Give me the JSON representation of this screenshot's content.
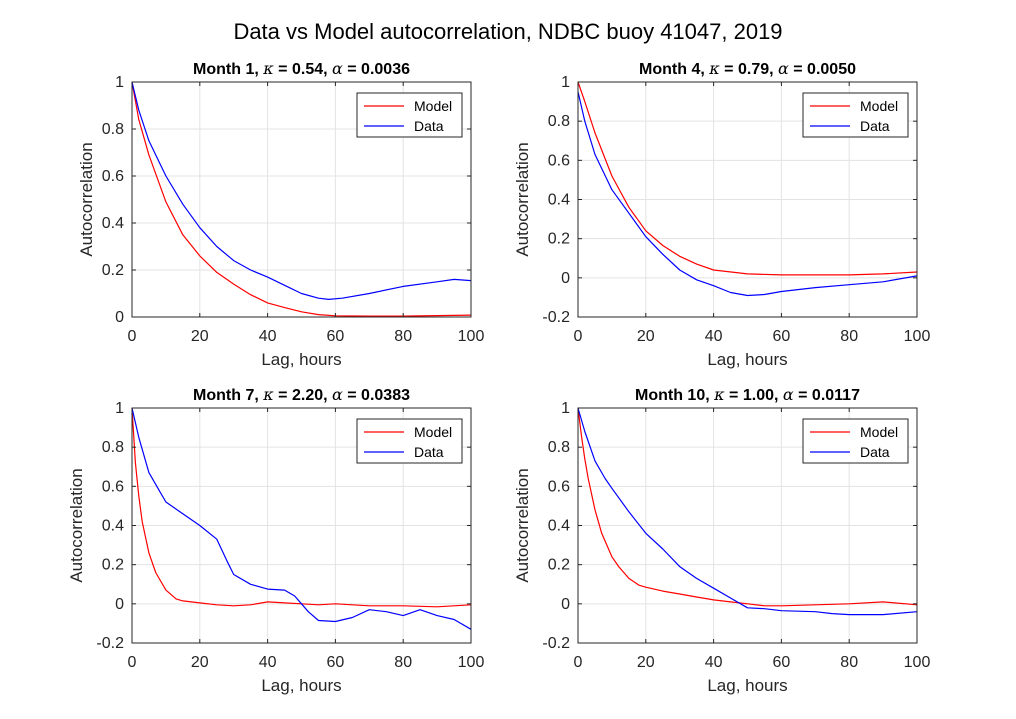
{
  "figure": {
    "title": "Data vs Model autocorrelation, NDBC buoy 41047, 2019"
  },
  "colors": {
    "model": "#ff0000",
    "data": "#0000ff",
    "grid": "#e3e3e3",
    "axis": "#262626"
  },
  "chart_data": [
    {
      "type": "line",
      "title": "Month 1, κ = 0.54, α = 0.0036",
      "title_parts": [
        {
          "text": "Month 1, ",
          "italic": false
        },
        {
          "text": "κ",
          "italic": true
        },
        {
          "text": " = 0.54, ",
          "italic": false
        },
        {
          "text": "α",
          "italic": true
        },
        {
          "text": " = 0.0036",
          "italic": false
        }
      ],
      "xlabel": "Lag, hours",
      "ylabel": "Autocorrelation",
      "xlim": [
        0,
        100
      ],
      "ylim": [
        0,
        1
      ],
      "xticks": [
        0,
        20,
        40,
        60,
        80,
        100
      ],
      "yticks": [
        0,
        0.2,
        0.4,
        0.6,
        0.8,
        1
      ],
      "xtick_labels": [
        "0",
        "20",
        "40",
        "60",
        "80",
        "100"
      ],
      "ytick_labels": [
        "0",
        "0.2",
        "0.4",
        "0.6",
        "0.8",
        "1"
      ],
      "grid": true,
      "legend": "top-right",
      "series": [
        {
          "name": "Model",
          "color": "#ff0000",
          "x": [
            0,
            2,
            5,
            10,
            15,
            20,
            25,
            30,
            35,
            40,
            45,
            50,
            55,
            60,
            70,
            80,
            90,
            100
          ],
          "y": [
            1,
            0.84,
            0.69,
            0.49,
            0.35,
            0.26,
            0.19,
            0.14,
            0.095,
            0.06,
            0.04,
            0.022,
            0.01,
            0.005,
            0.004,
            0.004,
            0.006,
            0.008
          ]
        },
        {
          "name": "Data",
          "color": "#0000ff",
          "x": [
            0,
            2,
            5,
            10,
            15,
            20,
            25,
            30,
            35,
            40,
            45,
            50,
            55,
            58,
            62,
            70,
            80,
            90,
            95,
            100
          ],
          "y": [
            1,
            0.88,
            0.75,
            0.6,
            0.48,
            0.38,
            0.3,
            0.24,
            0.2,
            0.17,
            0.135,
            0.1,
            0.08,
            0.075,
            0.08,
            0.1,
            0.13,
            0.15,
            0.16,
            0.155
          ]
        }
      ]
    },
    {
      "type": "line",
      "title": "Month 4, κ = 0.79, α = 0.0050",
      "title_parts": [
        {
          "text": "Month 4, ",
          "italic": false
        },
        {
          "text": "κ",
          "italic": true
        },
        {
          "text": " = 0.79, ",
          "italic": false
        },
        {
          "text": "α",
          "italic": true
        },
        {
          "text": " = 0.0050",
          "italic": false
        }
      ],
      "xlabel": "Lag, hours",
      "ylabel": "Autocorrelation",
      "xlim": [
        0,
        100
      ],
      "ylim": [
        -0.2,
        1
      ],
      "xticks": [
        0,
        20,
        40,
        60,
        80,
        100
      ],
      "yticks": [
        -0.2,
        0,
        0.2,
        0.4,
        0.6,
        0.8,
        1
      ],
      "xtick_labels": [
        "0",
        "20",
        "40",
        "60",
        "80",
        "100"
      ],
      "ytick_labels": [
        "-0.2",
        "0",
        "0.2",
        "0.4",
        "0.6",
        "0.8",
        "1"
      ],
      "grid": true,
      "legend": "top-right",
      "series": [
        {
          "name": "Model",
          "color": "#ff0000",
          "x": [
            0,
            2,
            5,
            10,
            15,
            20,
            25,
            30,
            35,
            40,
            50,
            60,
            70,
            80,
            90,
            100
          ],
          "y": [
            1,
            0.9,
            0.74,
            0.52,
            0.36,
            0.24,
            0.165,
            0.11,
            0.07,
            0.04,
            0.02,
            0.015,
            0.015,
            0.015,
            0.02,
            0.03
          ]
        },
        {
          "name": "Data",
          "color": "#0000ff",
          "x": [
            0,
            2,
            5,
            10,
            15,
            20,
            25,
            30,
            35,
            40,
            45,
            50,
            55,
            60,
            70,
            80,
            90,
            100
          ],
          "y": [
            0.95,
            0.8,
            0.63,
            0.45,
            0.33,
            0.21,
            0.12,
            0.04,
            -0.01,
            -0.04,
            -0.075,
            -0.09,
            -0.085,
            -0.07,
            -0.05,
            -0.035,
            -0.02,
            0.01
          ]
        }
      ]
    },
    {
      "type": "line",
      "title": "Month 7, κ = 2.20, α = 0.0383",
      "title_parts": [
        {
          "text": "Month 7, ",
          "italic": false
        },
        {
          "text": "κ",
          "italic": true
        },
        {
          "text": " = 2.20, ",
          "italic": false
        },
        {
          "text": "α",
          "italic": true
        },
        {
          "text": " = 0.0383",
          "italic": false
        }
      ],
      "xlabel": "Lag, hours",
      "ylabel": "Autocorrelation",
      "xlim": [
        0,
        100
      ],
      "ylim": [
        -0.2,
        1
      ],
      "xticks": [
        0,
        20,
        40,
        60,
        80,
        100
      ],
      "yticks": [
        -0.2,
        0,
        0.2,
        0.4,
        0.6,
        0.8,
        1
      ],
      "xtick_labels": [
        "0",
        "20",
        "40",
        "60",
        "80",
        "100"
      ],
      "ytick_labels": [
        "-0.2",
        "0",
        "0.2",
        "0.4",
        "0.6",
        "0.8",
        "1"
      ],
      "grid": true,
      "legend": "top-right",
      "series": [
        {
          "name": "Model",
          "color": "#ff0000",
          "x": [
            0,
            1,
            2,
            3,
            5,
            7,
            10,
            13,
            15,
            20,
            25,
            30,
            35,
            40,
            45,
            50,
            55,
            60,
            70,
            80,
            90,
            100
          ],
          "y": [
            1,
            0.72,
            0.55,
            0.42,
            0.26,
            0.16,
            0.07,
            0.025,
            0.015,
            0.005,
            -0.005,
            -0.01,
            -0.005,
            0.01,
            0.005,
            0.0,
            -0.005,
            0.0,
            -0.01,
            -0.01,
            -0.015,
            -0.005
          ]
        },
        {
          "name": "Data",
          "color": "#0000ff",
          "x": [
            0,
            2,
            5,
            8,
            10,
            15,
            20,
            25,
            28,
            30,
            35,
            40,
            45,
            48,
            50,
            52,
            55,
            60,
            65,
            70,
            75,
            80,
            85,
            90,
            95,
            100
          ],
          "y": [
            1,
            0.85,
            0.67,
            0.58,
            0.52,
            0.46,
            0.4,
            0.33,
            0.22,
            0.15,
            0.1,
            0.075,
            0.07,
            0.04,
            0.0,
            -0.04,
            -0.085,
            -0.09,
            -0.07,
            -0.03,
            -0.04,
            -0.06,
            -0.03,
            -0.06,
            -0.08,
            -0.13
          ]
        }
      ]
    },
    {
      "type": "line",
      "title": "Month 10, κ = 1.00, α = 0.0117",
      "title_parts": [
        {
          "text": "Month 10, ",
          "italic": false
        },
        {
          "text": "κ",
          "italic": true
        },
        {
          "text": " = 1.00, ",
          "italic": false
        },
        {
          "text": "α",
          "italic": true
        },
        {
          "text": " = 0.0117",
          "italic": false
        }
      ],
      "xlabel": "Lag, hours",
      "ylabel": "Autocorrelation",
      "xlim": [
        0,
        100
      ],
      "ylim": [
        -0.2,
        1
      ],
      "xticks": [
        0,
        20,
        40,
        60,
        80,
        100
      ],
      "yticks": [
        -0.2,
        0,
        0.2,
        0.4,
        0.6,
        0.8,
        1
      ],
      "xtick_labels": [
        "0",
        "20",
        "40",
        "60",
        "80",
        "100"
      ],
      "ytick_labels": [
        "-0.2",
        "0",
        "0.2",
        "0.4",
        "0.6",
        "0.8",
        "1"
      ],
      "grid": true,
      "legend": "top-right",
      "series": [
        {
          "name": "Model",
          "color": "#ff0000",
          "x": [
            0,
            1,
            2,
            3,
            5,
            7,
            10,
            12,
            15,
            18,
            20,
            25,
            30,
            35,
            40,
            45,
            50,
            55,
            60,
            70,
            80,
            90,
            100
          ],
          "y": [
            1,
            0.86,
            0.74,
            0.64,
            0.48,
            0.36,
            0.24,
            0.19,
            0.13,
            0.095,
            0.085,
            0.065,
            0.05,
            0.035,
            0.02,
            0.01,
            0.0,
            -0.01,
            -0.01,
            -0.005,
            0.0,
            0.01,
            -0.005
          ]
        },
        {
          "name": "Data",
          "color": "#0000ff",
          "x": [
            0,
            2,
            5,
            8,
            10,
            15,
            20,
            25,
            30,
            35,
            40,
            45,
            50,
            55,
            60,
            70,
            75,
            80,
            90,
            100
          ],
          "y": [
            1,
            0.88,
            0.73,
            0.64,
            0.59,
            0.47,
            0.36,
            0.28,
            0.19,
            0.13,
            0.08,
            0.03,
            -0.02,
            -0.025,
            -0.035,
            -0.04,
            -0.05,
            -0.055,
            -0.055,
            -0.04
          ]
        }
      ]
    }
  ]
}
